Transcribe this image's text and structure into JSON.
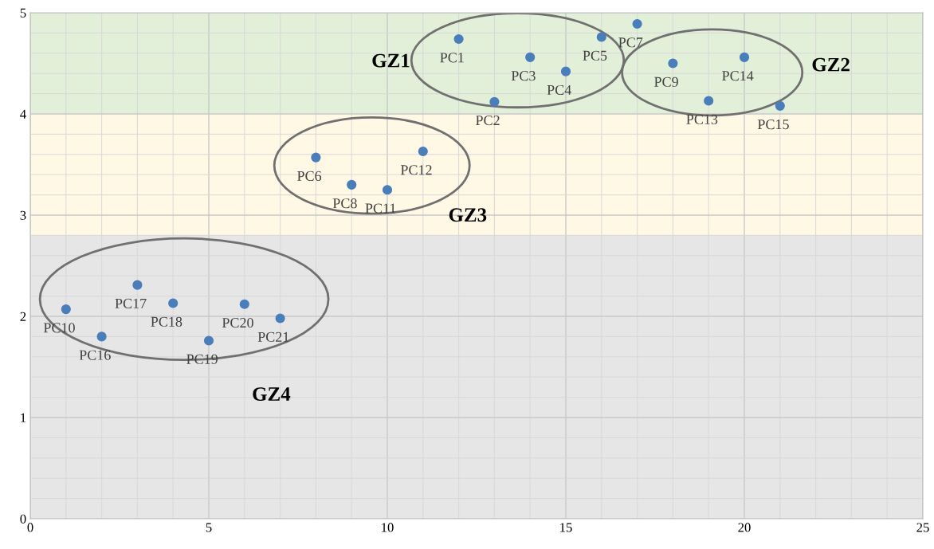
{
  "chart_data": {
    "type": "scatter",
    "marker": "circle",
    "grid": true,
    "xlim": [
      0,
      25
    ],
    "xticks": [
      0,
      5,
      10,
      15,
      20,
      25
    ],
    "ylim": [
      0,
      5
    ],
    "yticks": [
      0,
      1,
      2,
      3,
      4,
      5
    ],
    "bands": [
      {
        "axis": "y",
        "from": 4,
        "to": 5,
        "color": "#e2efd9",
        "label": null
      },
      {
        "axis": "y",
        "from": 2.8,
        "to": 4,
        "color": "#fff8e5",
        "label": null
      },
      {
        "axis": "y",
        "from": 0,
        "to": 2.8,
        "color": "#e6e6e6",
        "label": null
      }
    ],
    "series": [
      {
        "color": "#4a7ebb",
        "x": [
          12,
          13,
          14,
          15,
          16,
          8,
          17,
          9,
          18,
          1,
          10,
          11,
          19,
          20,
          21,
          2,
          3,
          4,
          5,
          6,
          7
        ],
        "values": [
          4.74,
          4.12,
          4.56,
          4.42,
          4.76,
          3.57,
          4.89,
          3.3,
          4.5,
          2.07,
          3.25,
          3.63,
          4.13,
          4.56,
          4.08,
          1.8,
          2.31,
          2.13,
          1.76,
          2.12,
          1.98
        ]
      }
    ],
    "annotations": [
      {
        "text": "PC1",
        "x": 12,
        "y": 4.74
      },
      {
        "text": "PC2",
        "x": 13,
        "y": 4.12
      },
      {
        "text": "PC3",
        "x": 14,
        "y": 4.56
      },
      {
        "text": "PC4",
        "x": 15,
        "y": 4.42
      },
      {
        "text": "PC5",
        "x": 16,
        "y": 4.76
      },
      {
        "text": "PC6",
        "x": 8,
        "y": 3.57
      },
      {
        "text": "PC7",
        "x": 17,
        "y": 4.89
      },
      {
        "text": "PC8",
        "x": 9,
        "y": 3.3
      },
      {
        "text": "PC9",
        "x": 18,
        "y": 4.5
      },
      {
        "text": "PC10",
        "x": 1,
        "y": 2.07
      },
      {
        "text": "PC11",
        "x": 10,
        "y": 3.25
      },
      {
        "text": "PC12",
        "x": 11,
        "y": 3.63
      },
      {
        "text": "PC13",
        "x": 19,
        "y": 4.13
      },
      {
        "text": "PC14",
        "x": 20,
        "y": 4.56
      },
      {
        "text": "PC15",
        "x": 21,
        "y": 4.08
      },
      {
        "text": "PC16",
        "x": 2,
        "y": 1.8
      },
      {
        "text": "PC17",
        "x": 3,
        "y": 2.31
      },
      {
        "text": "PC18",
        "x": 4,
        "y": 2.13
      },
      {
        "text": "PC19",
        "x": 5,
        "y": 1.76
      },
      {
        "text": "PC20",
        "x": 6,
        "y": 2.12
      },
      {
        "text": "PC21",
        "x": 7,
        "y": 1.98
      },
      "GZ1",
      "GZ2",
      "GZ3",
      "GZ4"
    ]
  }
}
